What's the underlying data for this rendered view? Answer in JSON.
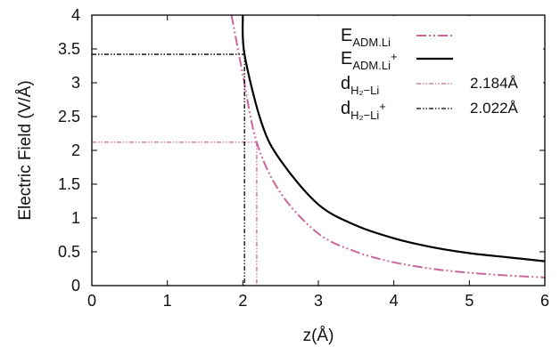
{
  "chart_data": {
    "type": "line",
    "xlabel": "z(Å)",
    "ylabel": "Electric Field (V/Å)",
    "xlim": [
      0,
      6
    ],
    "ylim": [
      0,
      4
    ],
    "xticks": [
      "0",
      "1",
      "2",
      "3",
      "4",
      "5",
      "6"
    ],
    "yticks": [
      "0",
      "0.5",
      "1",
      "1.5",
      "2",
      "2.5",
      "3",
      "3.5",
      "4"
    ],
    "legend_position": "top-right",
    "series": [
      {
        "name_main": "E",
        "name_sub": "ADM.Li",
        "name_sup": "",
        "color": "#cc6699",
        "dash": "dash-dot-dot",
        "x": [
          1.85,
          2.0,
          2.184,
          2.5,
          3.0,
          3.5,
          4.0,
          4.5,
          5.0,
          5.5,
          6.0
        ],
        "y": [
          4.0,
          3.12,
          2.12,
          1.37,
          0.77,
          0.5,
          0.345,
          0.25,
          0.19,
          0.15,
          0.12
        ]
      },
      {
        "name_main": "E",
        "name_sub": "ADM.Li",
        "name_sup": "+",
        "color": "#000000",
        "dash": "solid",
        "x": [
          2.0,
          2.022,
          2.25,
          2.5,
          3.0,
          3.5,
          4.0,
          4.5,
          5.0,
          5.5,
          6.0
        ],
        "y": [
          4.0,
          3.42,
          2.4,
          1.85,
          1.2,
          0.89,
          0.7,
          0.57,
          0.48,
          0.42,
          0.36
        ]
      },
      {
        "name_main": "d",
        "name_sub": "H₂−Li",
        "name_sup": "",
        "value_label": "2.184Å",
        "color": "#cc6699",
        "dash": "dash-dot-dot-fine",
        "marker_x": 2.184,
        "marker_y": 2.12
      },
      {
        "name_main": "d",
        "name_sub": "H₂−Li",
        "name_sup": "+",
        "value_label": "2.022Å",
        "color": "#000000",
        "dash": "dash-dot-dot-fine",
        "marker_x": 2.022,
        "marker_y": 3.42
      }
    ]
  }
}
